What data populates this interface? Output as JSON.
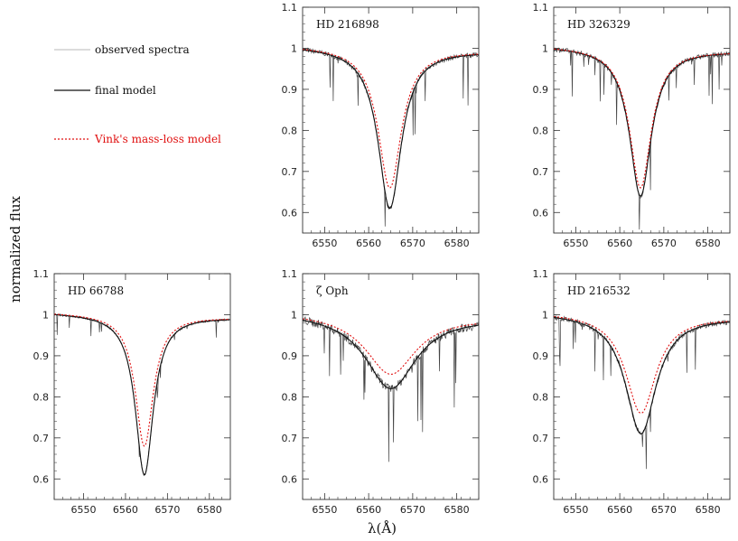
{
  "figure": {
    "ylabel": "normalized flux",
    "xlabel": "λ(Å)",
    "x_ticks": [
      "6550",
      "6560",
      "6570",
      "6580"
    ],
    "y_ticks": [
      "0.6",
      "0.7",
      "0.8",
      "0.9",
      "1",
      "1.1"
    ],
    "colors": {
      "observed": "#a0a0a0",
      "final": "#111111",
      "vink": "#e01010",
      "axis": "#333333"
    }
  },
  "legend": [
    {
      "key": "observed",
      "label": "observed spectra",
      "style": "solid"
    },
    {
      "key": "final",
      "label": "final model",
      "style": "solid"
    },
    {
      "key": "vink",
      "label": "Vink's mass-loss model",
      "style": "dotted"
    }
  ],
  "chart_data": [
    {
      "type": "line",
      "title": "HD 216898",
      "xlim": [
        6545,
        6585
      ],
      "ylim": [
        0.55,
        1.1
      ],
      "line_center": 6564.8,
      "final_min": 0.61,
      "vink_min": 0.66,
      "width": 3.2,
      "observed_noise": "moderate",
      "series": [
        {
          "name": "observed spectra"
        },
        {
          "name": "final model"
        },
        {
          "name": "Vink's mass-loss model"
        }
      ]
    },
    {
      "type": "line",
      "title": "HD 326329",
      "xlim": [
        6545,
        6585
      ],
      "ylim": [
        0.55,
        1.1
      ],
      "line_center": 6564.7,
      "final_min": 0.64,
      "vink_min": 0.66,
      "width": 3.0,
      "observed_noise": "moderate",
      "series": [
        {
          "name": "observed spectra"
        },
        {
          "name": "final model"
        },
        {
          "name": "Vink's mass-loss model"
        }
      ]
    },
    {
      "type": "line",
      "title": "HD 66788",
      "xlim": [
        6543,
        6585
      ],
      "ylim": [
        0.55,
        1.1
      ],
      "line_center": 6564.5,
      "final_min": 0.61,
      "vink_min": 0.68,
      "width": 2.6,
      "observed_noise": "low",
      "series": [
        {
          "name": "observed spectra"
        },
        {
          "name": "final model"
        },
        {
          "name": "Vink's mass-loss model"
        }
      ]
    },
    {
      "type": "line",
      "title": "ζ Oph",
      "xlim": [
        6545,
        6585
      ],
      "ylim": [
        0.55,
        1.1
      ],
      "line_center": 6565.0,
      "final_min": 0.82,
      "vink_min": 0.855,
      "width": 7.0,
      "observed_noise": "strong",
      "series": [
        {
          "name": "observed spectra"
        },
        {
          "name": "final model"
        },
        {
          "name": "Vink's mass-loss model"
        }
      ]
    },
    {
      "type": "line",
      "title": "HD 216532",
      "xlim": [
        6545,
        6585
      ],
      "ylim": [
        0.55,
        1.1
      ],
      "line_center": 6564.8,
      "final_min": 0.71,
      "vink_min": 0.76,
      "width": 4.2,
      "observed_noise": "moderate",
      "series": [
        {
          "name": "observed spectra"
        },
        {
          "name": "final model"
        },
        {
          "name": "Vink's mass-loss model"
        }
      ]
    }
  ]
}
